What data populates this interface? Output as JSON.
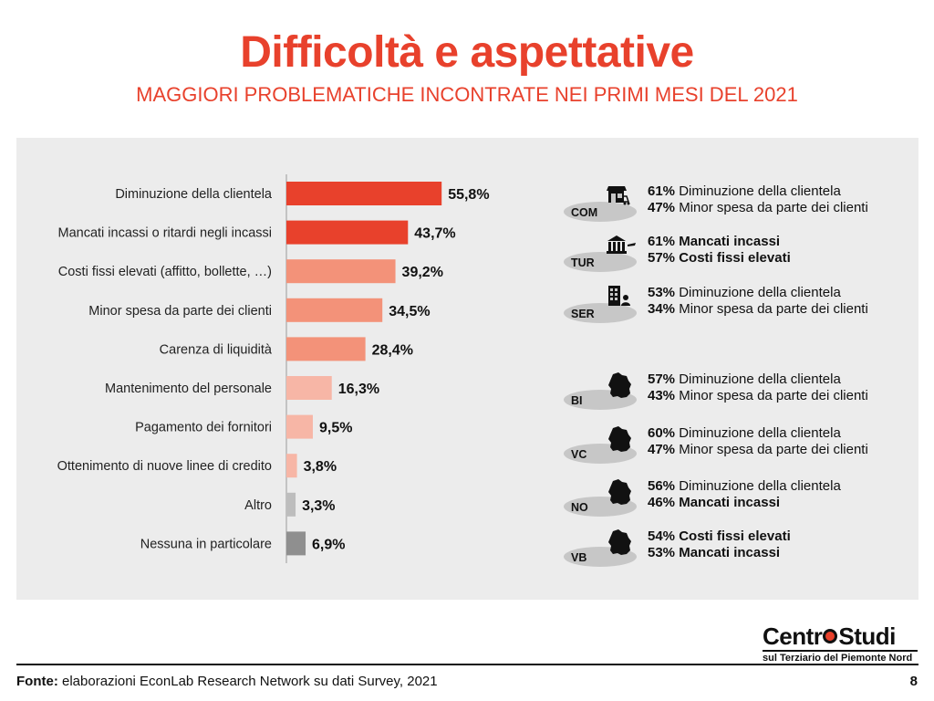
{
  "title": "Difficoltà e aspettative",
  "subtitle": "MAGGIORI PROBLEMATICHE INCONTRATE NEI PRIMI MESI DEL 2021",
  "chart_data": {
    "type": "bar",
    "orientation": "horizontal",
    "categories": [
      "Diminuzione della clientela",
      "Mancati incassi o ritardi negli incassi",
      "Costi fissi elevati (affitto, bollette, …)",
      "Minor spesa da parte dei clienti",
      "Carenza di liquidità",
      "Mantenimento del personale",
      "Pagamento dei fornitori",
      "Ottenimento di nuove linee di credito",
      "Altro",
      "Nessuna in particolare"
    ],
    "values": [
      55.8,
      43.7,
      39.2,
      34.5,
      28.4,
      16.3,
      9.5,
      3.8,
      3.3,
      6.9
    ],
    "value_labels": [
      "55,8%",
      "43,7%",
      "39,2%",
      "34,5%",
      "28,4%",
      "16,3%",
      "9,5%",
      "3,8%",
      "3,3%",
      "6,9%"
    ],
    "colors": [
      "#e8412c",
      "#e8412c",
      "#f39279",
      "#f39279",
      "#f39279",
      "#f7b6a6",
      "#f7b6a6",
      "#f7b6a6",
      "#bdbdbd",
      "#8f8f8f"
    ],
    "xlim": [
      0,
      60
    ],
    "grid": false,
    "legend": "none"
  },
  "segments": [
    {
      "code": "COM",
      "icon": "shop-icon",
      "line1": {
        "pct": "61%",
        "text": "Diminuzione della clientela",
        "bold": false
      },
      "line2": {
        "pct": "47%",
        "text": "Minor spesa da parte dei clienti",
        "bold": false
      }
    },
    {
      "code": "TUR",
      "icon": "tourism-icon",
      "line1": {
        "pct": "61%",
        "text": "Mancati incassi",
        "bold": true
      },
      "line2": {
        "pct": "57%",
        "text": "Costi fissi elevati",
        "bold": true
      }
    },
    {
      "code": "SER",
      "icon": "office-icon",
      "line1": {
        "pct": "53%",
        "text": "Diminuzione della clientela",
        "bold": false
      },
      "line2": {
        "pct": "34%",
        "text": "Minor spesa da parte dei clienti",
        "bold": false
      }
    },
    {
      "code": "BI",
      "icon": "province-map-icon",
      "line1": {
        "pct": "57%",
        "text": "Diminuzione della clientela",
        "bold": false
      },
      "line2": {
        "pct": "43%",
        "text": "Minor spesa da parte dei clienti",
        "bold": false
      }
    },
    {
      "code": "VC",
      "icon": "province-map-icon",
      "line1": {
        "pct": "60%",
        "text": "Diminuzione della clientela",
        "bold": false
      },
      "line2": {
        "pct": "47%",
        "text": "Minor spesa da parte dei clienti",
        "bold": false
      }
    },
    {
      "code": "NO",
      "icon": "province-map-icon",
      "line1": {
        "pct": "56%",
        "text": "Diminuzione della clientela",
        "bold": false
      },
      "line2": {
        "pct": "46%",
        "text": "Mancati incassi",
        "bold": true
      }
    },
    {
      "code": "VB",
      "icon": "province-map-icon",
      "line1": {
        "pct": "54%",
        "text": "Costi fissi elevati",
        "bold": true
      },
      "line2": {
        "pct": "53%",
        "text": "Mancati incassi",
        "bold": true
      }
    }
  ],
  "logo": {
    "main_left": "Centr",
    "main_right": "Studi",
    "sub": "sul Terziario del Piemonte Nord"
  },
  "footer": {
    "source_label": "Fonte:",
    "source_text": " elaborazioni EconLab Research Network su dati Survey, 2021",
    "page_number": "8"
  }
}
